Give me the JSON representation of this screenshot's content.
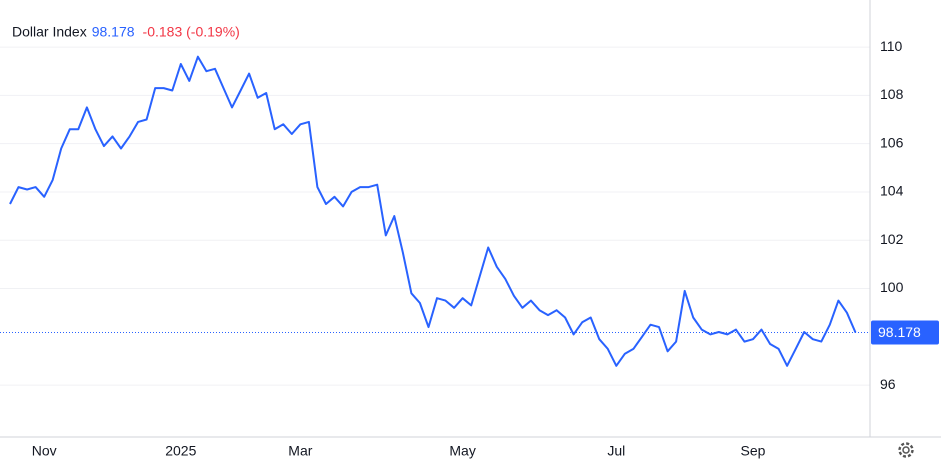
{
  "chart_data": {
    "type": "line",
    "title": "Dollar Index",
    "price_label": "98.178",
    "change_label": "-0.183 (-0.19%)",
    "categories": [
      null,
      null,
      null,
      null,
      "Nov",
      null,
      null,
      null,
      null,
      null,
      null,
      null,
      null,
      null,
      null,
      null,
      null,
      null,
      null,
      null,
      "2025",
      null,
      null,
      null,
      null,
      null,
      null,
      null,
      null,
      null,
      null,
      null,
      null,
      null,
      "Mar",
      null,
      null,
      null,
      null,
      null,
      null,
      null,
      null,
      null,
      null,
      null,
      null,
      null,
      null,
      null,
      null,
      null,
      null,
      "May",
      null,
      null,
      null,
      null,
      null,
      null,
      null,
      null,
      null,
      null,
      null,
      null,
      null,
      null,
      null,
      null,
      null,
      "Jul",
      null,
      null,
      null,
      null,
      null,
      null,
      null,
      null,
      null,
      null,
      null,
      null,
      null,
      null,
      null,
      "Sep",
      null,
      null,
      null,
      null,
      null,
      null,
      null,
      null,
      null,
      null,
      null,
      null
    ],
    "series": [
      {
        "name": "Dollar Index",
        "color": "#2962ff",
        "values": [
          103.5,
          104.2,
          104.1,
          104.2,
          103.8,
          104.5,
          105.8,
          106.6,
          106.6,
          107.5,
          106.6,
          105.9,
          106.3,
          105.8,
          106.3,
          106.9,
          107.0,
          108.3,
          108.3,
          108.2,
          109.3,
          108.6,
          109.6,
          109.0,
          109.1,
          108.3,
          107.5,
          108.2,
          108.9,
          107.9,
          108.1,
          106.6,
          106.8,
          106.4,
          106.8,
          106.9,
          104.2,
          103.5,
          103.8,
          103.4,
          104.0,
          104.2,
          104.2,
          104.3,
          102.2,
          103.0,
          101.5,
          99.8,
          99.4,
          98.4,
          99.6,
          99.5,
          99.2,
          99.6,
          99.3,
          100.5,
          101.7,
          100.9,
          100.4,
          99.7,
          99.2,
          99.5,
          99.1,
          98.9,
          99.1,
          98.8,
          98.1,
          98.6,
          98.8,
          97.9,
          97.5,
          96.8,
          97.3,
          97.5,
          98.0,
          98.5,
          98.4,
          97.4,
          97.8,
          99.9,
          98.8,
          98.3,
          98.1,
          98.2,
          98.1,
          98.3,
          97.8,
          97.9,
          98.3,
          97.7,
          97.5,
          96.8,
          97.5,
          98.2,
          97.9,
          97.8,
          98.5,
          99.5,
          99.0,
          98.178
        ]
      }
    ],
    "ylim": [
      93.85,
      111.95
    ],
    "yticks": [
      96,
      100,
      102,
      104,
      106,
      108,
      110
    ],
    "grid": true
  }
}
